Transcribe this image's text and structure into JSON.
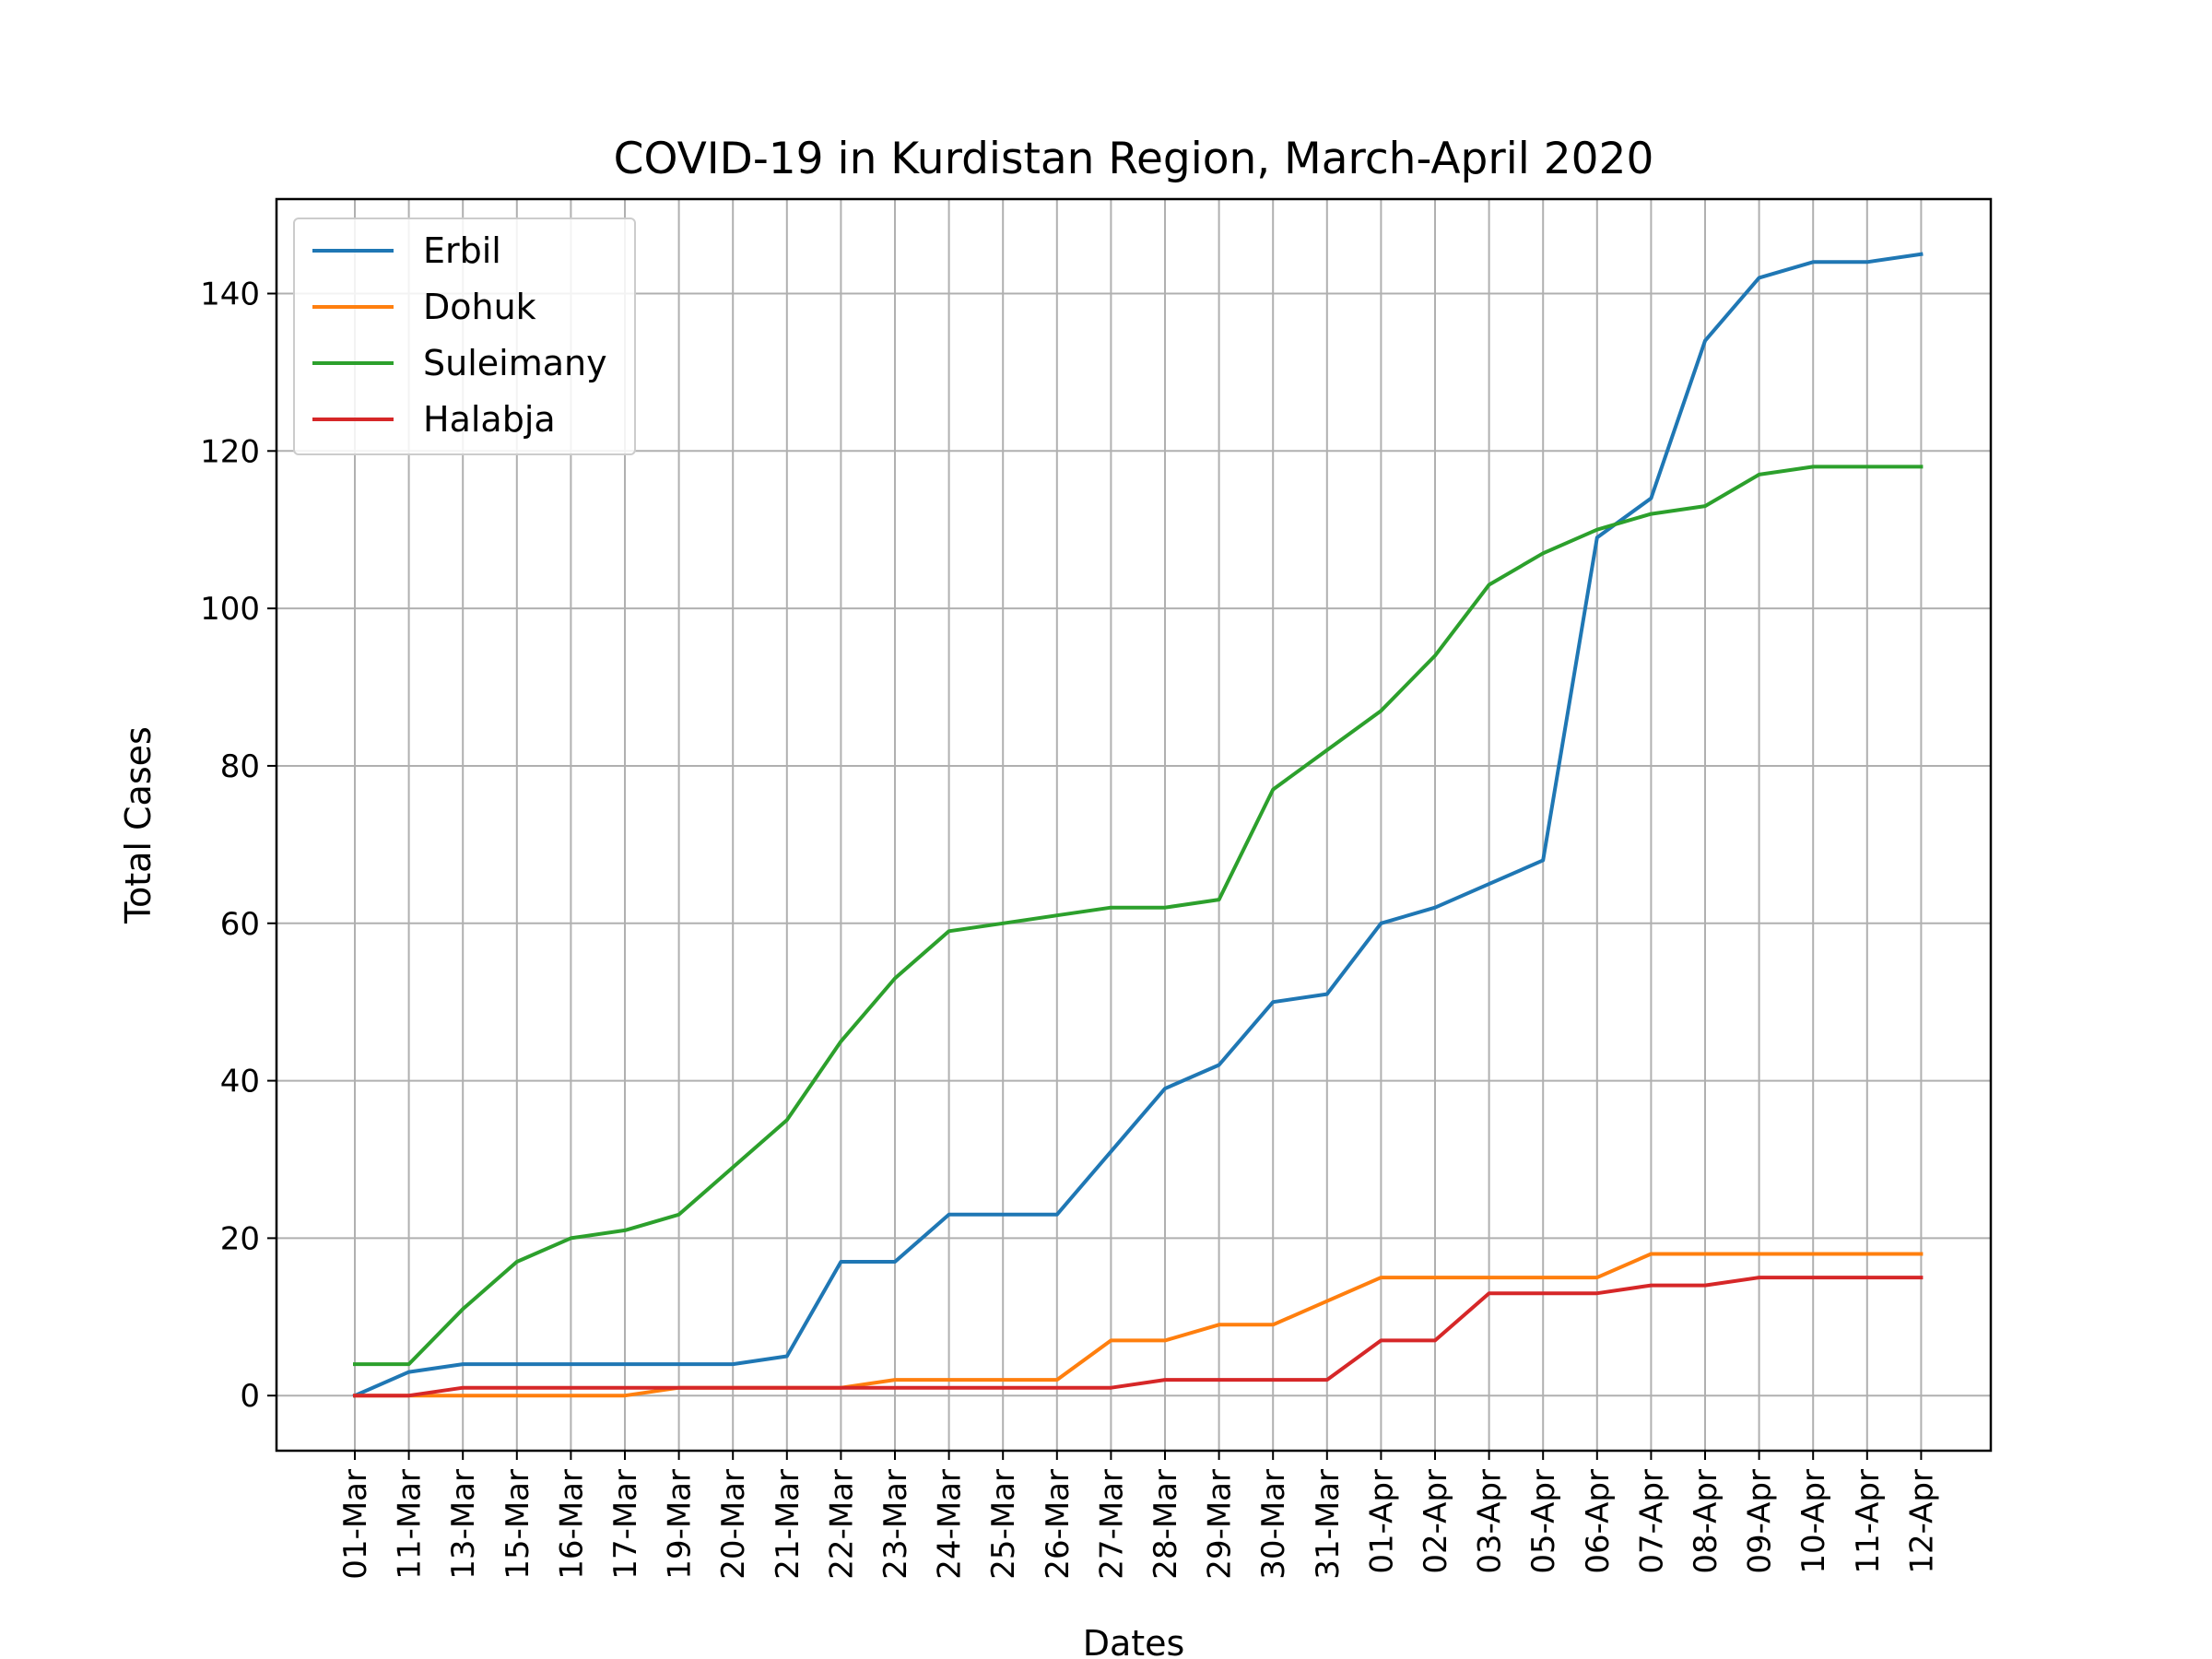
{
  "chart_data": {
    "type": "line",
    "title": "COVID-19 in Kurdistan Region, March-April 2020",
    "xlabel": "Dates",
    "ylabel": "Total Cases",
    "categories": [
      "01-Mar",
      "11-Mar",
      "13-Mar",
      "15-Mar",
      "16-Mar",
      "17-Mar",
      "19-Mar",
      "20-Mar",
      "21-Mar",
      "22-Mar",
      "23-Mar",
      "24-Mar",
      "25-Mar",
      "26-Mar",
      "27-Mar",
      "28-Mar",
      "29-Mar",
      "30-Mar",
      "31-Mar",
      "01-Apr",
      "02-Apr",
      "03-Apr",
      "05-Apr",
      "06-Apr",
      "07-Apr",
      "08-Apr",
      "09-Apr",
      "10-Apr",
      "11-Apr",
      "12-Apr"
    ],
    "ylim": [
      -7,
      152
    ],
    "yticks": [
      0,
      20,
      40,
      60,
      80,
      100,
      120,
      140
    ],
    "grid": true,
    "legend_position": "top-left",
    "series": [
      {
        "name": "Erbil",
        "color": "#1f77b4",
        "values": [
          0,
          3,
          4,
          4,
          4,
          4,
          4,
          4,
          5,
          17,
          17,
          23,
          23,
          23,
          31,
          39,
          42,
          50,
          51,
          60,
          62,
          65,
          68,
          109,
          114,
          134,
          142,
          144,
          144,
          145
        ]
      },
      {
        "name": "Dohuk",
        "color": "#ff7f0e",
        "values": [
          0,
          0,
          0,
          0,
          0,
          0,
          1,
          1,
          1,
          1,
          2,
          2,
          2,
          2,
          7,
          7,
          9,
          9,
          12,
          15,
          15,
          15,
          15,
          15,
          18,
          18,
          18,
          18,
          18,
          18
        ]
      },
      {
        "name": "Suleimany",
        "color": "#2ca02c",
        "values": [
          4,
          4,
          11,
          17,
          20,
          21,
          23,
          29,
          35,
          45,
          53,
          59,
          60,
          61,
          62,
          62,
          63,
          77,
          82,
          87,
          94,
          103,
          107,
          110,
          112,
          113,
          117,
          118,
          118,
          118
        ]
      },
      {
        "name": "Halabja",
        "color": "#d62728",
        "values": [
          0,
          0,
          1,
          1,
          1,
          1,
          1,
          1,
          1,
          1,
          1,
          1,
          1,
          1,
          1,
          2,
          2,
          2,
          2,
          7,
          7,
          13,
          13,
          13,
          14,
          14,
          15,
          15,
          15,
          15
        ]
      }
    ]
  }
}
